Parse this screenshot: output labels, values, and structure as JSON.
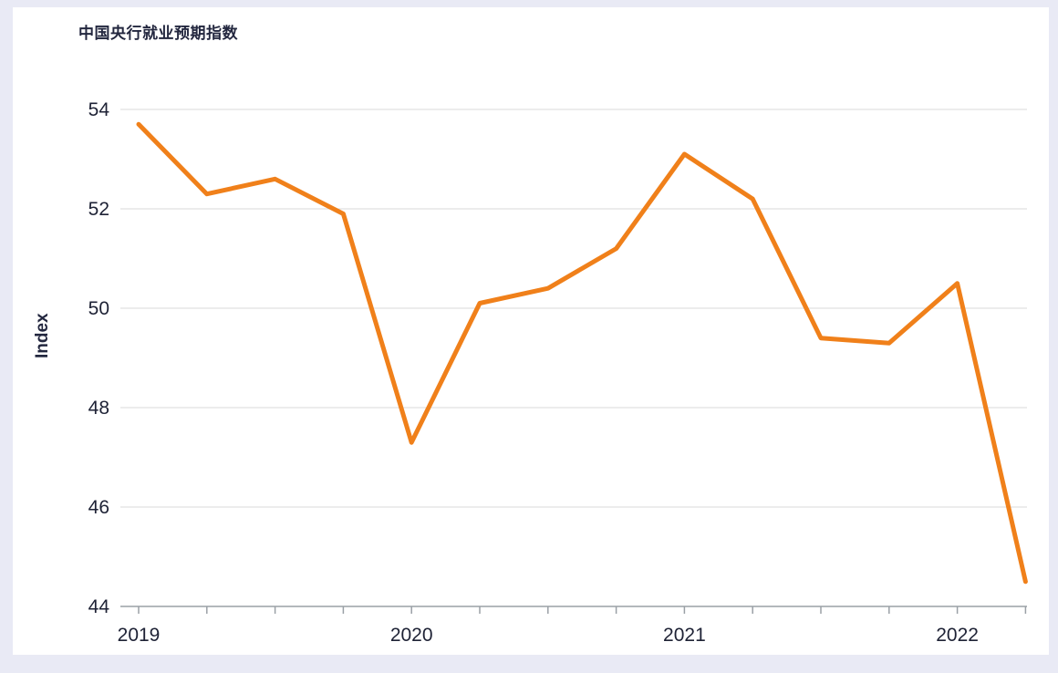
{
  "chart": {
    "title": "中国央行就业预期指数",
    "ylabel": "Index"
  },
  "chart_data": {
    "type": "line",
    "title": "中国央行就业预期指数",
    "xlabel": "",
    "ylabel": "Index",
    "x": [
      "2019Q1",
      "2019Q2",
      "2019Q3",
      "2019Q4",
      "2020Q1",
      "2020Q2",
      "2020Q3",
      "2020Q4",
      "2021Q1",
      "2021Q2",
      "2021Q3",
      "2021Q4",
      "2022Q1",
      "2022Q2"
    ],
    "values": [
      53.7,
      52.3,
      52.6,
      51.9,
      47.3,
      50.1,
      50.4,
      51.2,
      53.1,
      52.2,
      49.4,
      49.3,
      50.5,
      44.5
    ],
    "x_tick_labels": [
      "2019",
      "2020",
      "2021",
      "2022"
    ],
    "x_tick_indices": [
      0,
      4,
      8,
      12
    ],
    "yticks": [
      44,
      46,
      48,
      50,
      52,
      54
    ],
    "ylim": [
      44,
      54
    ],
    "grid": true,
    "legend": "none",
    "line_color": "#f0801a",
    "grid_color": "#d9d9d9",
    "axis_color": "#9aa0a6",
    "text_color": "#1e2235"
  }
}
